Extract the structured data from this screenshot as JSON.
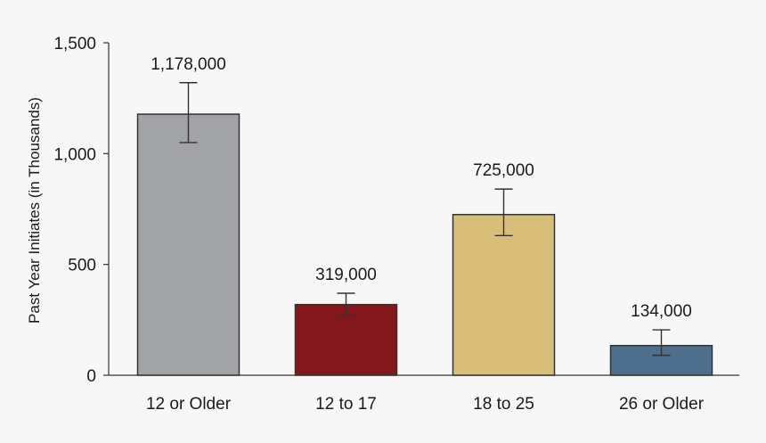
{
  "chart_data": {
    "type": "bar",
    "categories": [
      "12 or Older",
      "12 to 17",
      "18 to 25",
      "26 or Older"
    ],
    "values": [
      1178,
      319,
      725,
      134
    ],
    "data_labels": [
      "1,178,000",
      "319,000",
      "725,000",
      "134,000"
    ],
    "error_bars": [
      {
        "low": 1050,
        "high": 1320
      },
      {
        "low": 270,
        "high": 370
      },
      {
        "low": 630,
        "high": 840
      },
      {
        "low": 90,
        "high": 205
      }
    ],
    "colors": [
      "#a2a3a7",
      "#84171b",
      "#d9be7a",
      "#4d6e8c"
    ],
    "ylabel": "Past Year Initiates (in Thousands)",
    "ylim": [
      0,
      1500
    ],
    "yticks": [
      0,
      500,
      1000,
      1500
    ],
    "ytick_labels": [
      "0",
      "500",
      "1,000",
      "1,500"
    ],
    "grid": false,
    "legend": "none"
  }
}
